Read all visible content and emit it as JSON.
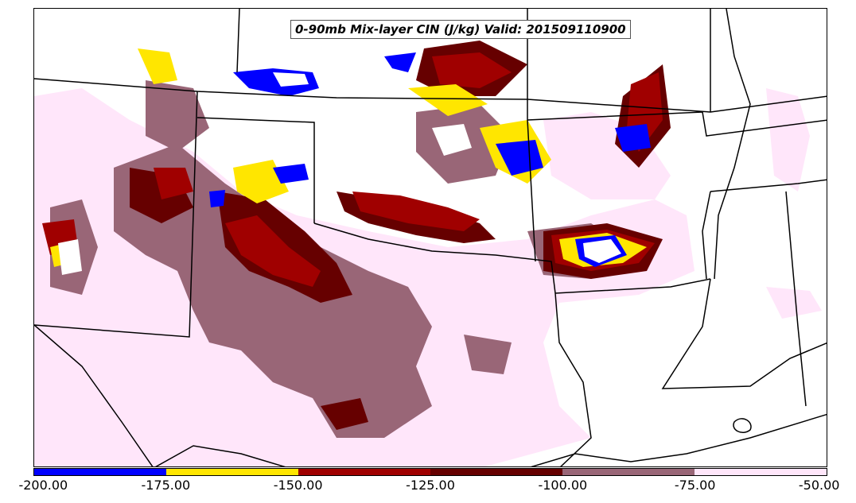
{
  "title": "0-90mb Mix-layer CIN (J/kg) Valid: 201509110900",
  "colorbar": {
    "colors": [
      "#0000ff",
      "#ffe600",
      "#a00000",
      "#660000",
      "#996677",
      "#ffe6fa"
    ],
    "ticks": [
      "-200.00",
      "-175.00",
      "-150.00",
      "-125.00",
      "-100.00",
      "-75.00",
      "-50.00"
    ]
  },
  "legend_colors": {
    "blue": "#0000ff",
    "yellow": "#ffe600",
    "red": "#a00000",
    "darkred": "#660000",
    "mauve": "#996677",
    "pink": "#ffe6fa"
  }
}
